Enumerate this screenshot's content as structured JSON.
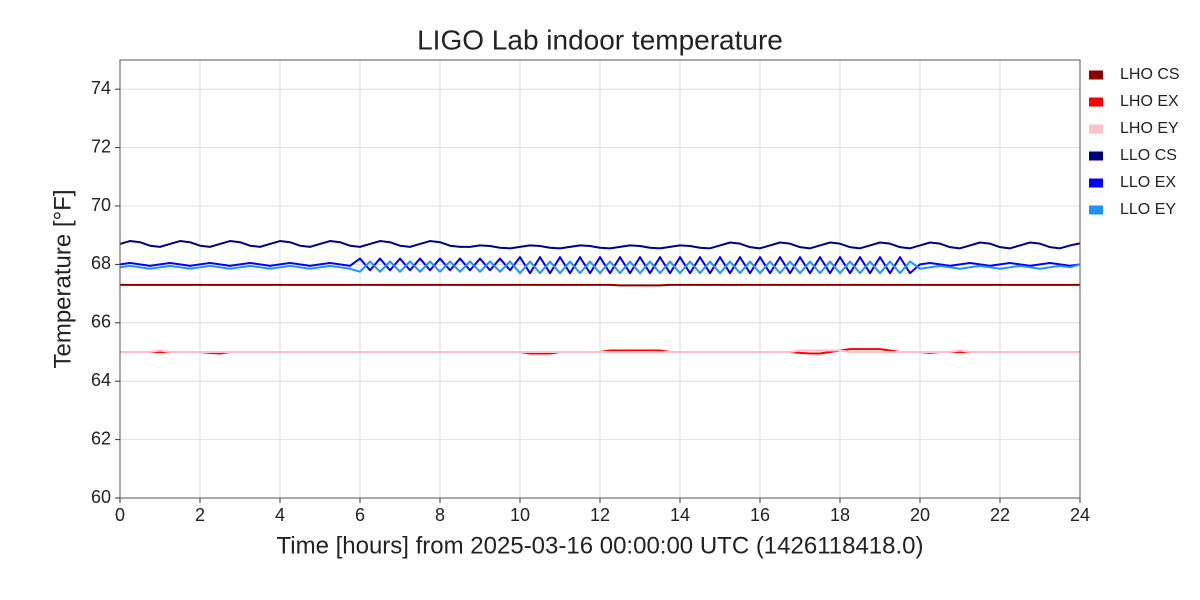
{
  "chart_data": {
    "type": "line",
    "title": "LIGO Lab indoor temperature",
    "xlabel": "Time [hours] from 2025-03-16 00:00:00 UTC (1426118418.0)",
    "ylabel": "Temperature [°F]",
    "xlim": [
      0,
      24
    ],
    "xticks": [
      0,
      2,
      4,
      6,
      8,
      10,
      12,
      14,
      16,
      18,
      20,
      22,
      24
    ],
    "ylim": [
      60,
      75
    ],
    "yticks": [
      60,
      62,
      64,
      66,
      68,
      70,
      72,
      74
    ],
    "grid": true,
    "legend": "outside right",
    "x": [
      0,
      0.25,
      0.5,
      0.75,
      1,
      1.25,
      1.5,
      1.75,
      2,
      2.25,
      2.5,
      2.75,
      3,
      3.25,
      3.5,
      3.75,
      4,
      4.25,
      4.5,
      4.75,
      5,
      5.25,
      5.5,
      5.75,
      6,
      6.25,
      6.5,
      6.75,
      7,
      7.25,
      7.5,
      7.75,
      8,
      8.25,
      8.5,
      8.75,
      9,
      9.25,
      9.5,
      9.75,
      10,
      10.25,
      10.5,
      10.75,
      11,
      11.25,
      11.5,
      11.75,
      12,
      12.25,
      12.5,
      12.75,
      13,
      13.25,
      13.5,
      13.75,
      14,
      14.25,
      14.5,
      14.75,
      15,
      15.25,
      15.5,
      15.75,
      16,
      16.25,
      16.5,
      16.75,
      17,
      17.25,
      17.5,
      17.75,
      18,
      18.25,
      18.5,
      18.75,
      19,
      19.25,
      19.5,
      19.75,
      20,
      20.25,
      20.5,
      20.75,
      21,
      21.25,
      21.5,
      21.75,
      22,
      22.25,
      22.5,
      22.75,
      23,
      23.25,
      23.5,
      23.75,
      24
    ],
    "series": [
      {
        "name": "LHO CS",
        "color": "#8b0000",
        "values": [
          67.3,
          67.3,
          67.3,
          67.3,
          67.3,
          67.3,
          67.3,
          67.3,
          67.3,
          67.3,
          67.3,
          67.3,
          67.3,
          67.3,
          67.3,
          67.3,
          67.3,
          67.3,
          67.3,
          67.3,
          67.3,
          67.3,
          67.3,
          67.3,
          67.3,
          67.3,
          67.3,
          67.3,
          67.3,
          67.3,
          67.3,
          67.3,
          67.3,
          67.3,
          67.3,
          67.3,
          67.3,
          67.3,
          67.3,
          67.3,
          67.3,
          67.3,
          67.3,
          67.3,
          67.3,
          67.3,
          67.3,
          67.3,
          67.3,
          67.3,
          67.28,
          67.28,
          67.28,
          67.28,
          67.28,
          67.3,
          67.3,
          67.3,
          67.3,
          67.3,
          67.3,
          67.3,
          67.3,
          67.3,
          67.3,
          67.3,
          67.3,
          67.3,
          67.3,
          67.3,
          67.3,
          67.3,
          67.3,
          67.3,
          67.3,
          67.3,
          67.3,
          67.3,
          67.3,
          67.3,
          67.3,
          67.3,
          67.3,
          67.3,
          67.3,
          67.3,
          67.3,
          67.3,
          67.3,
          67.3,
          67.3,
          67.3,
          67.3,
          67.3,
          67.3,
          67.3,
          67.3
        ]
      },
      {
        "name": "LHO EX",
        "color": "#ff0000",
        "values": [
          65.0,
          65.0,
          65.0,
          65.0,
          65.0,
          65.0,
          65.0,
          65.0,
          65.0,
          64.97,
          64.95,
          65.0,
          65.0,
          65.0,
          65.0,
          65.0,
          65.0,
          65.0,
          65.0,
          65.0,
          65.0,
          65.0,
          65.0,
          65.0,
          65.0,
          65.0,
          65.0,
          65.0,
          65.0,
          65.0,
          65.0,
          65.0,
          65.0,
          65.0,
          65.0,
          65.0,
          65.0,
          65.0,
          65.0,
          65.0,
          65.0,
          64.95,
          64.95,
          64.95,
          65.0,
          65.0,
          65.0,
          65.0,
          65.0,
          65.05,
          65.05,
          65.05,
          65.05,
          65.05,
          65.05,
          65.0,
          65.0,
          65.0,
          65.0,
          65.0,
          65.0,
          65.0,
          65.0,
          65.0,
          65.0,
          65.0,
          65.0,
          65.0,
          64.97,
          64.95,
          64.95,
          65.0,
          65.05,
          65.1,
          65.1,
          65.1,
          65.1,
          65.05,
          65.0,
          65.0,
          65.0,
          64.97,
          65.0,
          65.0,
          65.0,
          65.0,
          65.0,
          65.0,
          65.0,
          65.0,
          65.0,
          65.0,
          65.0,
          65.0,
          65.0,
          65.0,
          65.0
        ]
      },
      {
        "name": "LHO EY",
        "color": "#ffc0cb",
        "values": [
          65.0,
          65.0,
          65.0,
          65.0,
          65.05,
          65.0,
          65.0,
          65.0,
          65.0,
          65.0,
          65.0,
          65.0,
          65.0,
          65.0,
          65.0,
          65.0,
          65.0,
          65.0,
          65.0,
          65.0,
          65.0,
          65.0,
          65.0,
          65.0,
          65.0,
          65.0,
          65.0,
          65.0,
          65.0,
          65.0,
          65.0,
          65.0,
          65.0,
          65.0,
          65.0,
          65.0,
          65.0,
          65.0,
          65.0,
          65.0,
          65.0,
          65.0,
          65.0,
          65.0,
          65.0,
          65.0,
          65.0,
          65.0,
          65.0,
          65.0,
          65.0,
          65.0,
          65.0,
          65.0,
          65.0,
          65.0,
          65.0,
          65.0,
          65.0,
          65.0,
          65.0,
          65.0,
          65.0,
          65.0,
          65.0,
          65.0,
          65.0,
          65.0,
          65.05,
          65.05,
          65.05,
          65.05,
          65.05,
          65.0,
          65.0,
          65.0,
          65.0,
          65.0,
          65.0,
          65.0,
          65.0,
          65.0,
          65.0,
          65.0,
          65.05,
          65.0,
          65.0,
          65.0,
          65.0,
          65.0,
          65.0,
          65.0,
          65.0,
          65.0,
          65.0,
          65.0,
          65.0
        ]
      },
      {
        "name": "LLO CS",
        "color": "#000080",
        "values": [
          68.7,
          68.8,
          68.76,
          68.64,
          68.6,
          68.7,
          68.8,
          68.76,
          68.64,
          68.6,
          68.7,
          68.8,
          68.76,
          68.64,
          68.6,
          68.7,
          68.8,
          68.76,
          68.64,
          68.6,
          68.7,
          68.8,
          68.76,
          68.64,
          68.6,
          68.7,
          68.8,
          68.76,
          68.64,
          68.6,
          68.7,
          68.8,
          68.76,
          68.64,
          68.6,
          68.6,
          68.65,
          68.63,
          68.57,
          68.55,
          68.6,
          68.65,
          68.63,
          68.57,
          68.55,
          68.6,
          68.65,
          68.63,
          68.57,
          68.55,
          68.6,
          68.65,
          68.63,
          68.57,
          68.55,
          68.6,
          68.65,
          68.63,
          68.57,
          68.55,
          68.65,
          68.75,
          68.71,
          68.59,
          68.55,
          68.65,
          68.75,
          68.71,
          68.59,
          68.55,
          68.65,
          68.75,
          68.71,
          68.59,
          68.55,
          68.65,
          68.75,
          68.71,
          68.59,
          68.55,
          68.65,
          68.75,
          68.71,
          68.59,
          68.55,
          68.65,
          68.75,
          68.71,
          68.59,
          68.55,
          68.65,
          68.75,
          68.71,
          68.59,
          68.55,
          68.65,
          68.72
        ]
      },
      {
        "name": "LLO EX",
        "color": "#0000ff",
        "values": [
          68.0,
          68.05,
          68.0,
          67.95,
          68.0,
          68.05,
          68.0,
          67.95,
          68.0,
          68.05,
          68.0,
          67.95,
          68.0,
          68.05,
          68.0,
          67.95,
          68.0,
          68.05,
          68.0,
          67.95,
          68.0,
          68.05,
          68.0,
          67.95,
          68.2,
          67.8,
          68.2,
          67.8,
          68.2,
          67.8,
          68.2,
          67.8,
          68.2,
          67.8,
          68.2,
          67.8,
          68.2,
          67.8,
          68.2,
          67.8,
          68.25,
          67.7,
          68.25,
          67.7,
          68.25,
          67.7,
          68.25,
          67.7,
          68.25,
          67.7,
          68.25,
          67.7,
          68.25,
          67.7,
          68.25,
          67.7,
          68.25,
          67.7,
          68.25,
          67.7,
          68.25,
          67.7,
          68.25,
          67.7,
          68.25,
          67.7,
          68.25,
          67.7,
          68.25,
          67.7,
          68.25,
          67.7,
          68.25,
          67.7,
          68.25,
          67.7,
          68.25,
          67.7,
          68.25,
          67.7,
          68.0,
          68.05,
          68.0,
          67.95,
          68.0,
          68.05,
          68.0,
          67.95,
          68.0,
          68.05,
          68.0,
          67.95,
          68.0,
          68.05,
          68.0,
          67.95,
          68.0
        ]
      },
      {
        "name": "LLO EY",
        "color": "#1e90ff",
        "values": [
          67.9,
          67.95,
          67.9,
          67.85,
          67.9,
          67.95,
          67.9,
          67.85,
          67.9,
          67.95,
          67.9,
          67.85,
          67.9,
          67.95,
          67.9,
          67.85,
          67.9,
          67.95,
          67.9,
          67.85,
          67.9,
          67.95,
          67.9,
          67.85,
          67.75,
          68.1,
          67.75,
          68.1,
          67.75,
          68.1,
          67.75,
          68.1,
          67.75,
          68.1,
          67.75,
          68.1,
          67.75,
          68.1,
          67.75,
          68.1,
          67.7,
          68.1,
          67.7,
          68.1,
          67.7,
          68.1,
          67.7,
          68.1,
          67.7,
          68.1,
          67.7,
          68.1,
          67.7,
          68.1,
          67.7,
          68.1,
          67.7,
          68.1,
          67.7,
          68.1,
          67.7,
          68.1,
          67.7,
          68.1,
          67.7,
          68.1,
          67.7,
          68.1,
          67.7,
          68.1,
          67.7,
          68.1,
          67.7,
          68.1,
          67.7,
          68.1,
          67.7,
          68.1,
          67.7,
          68.1,
          67.85,
          67.9,
          67.95,
          67.9,
          67.85,
          67.9,
          67.95,
          67.9,
          67.85,
          67.9,
          67.95,
          67.9,
          67.85,
          67.9,
          67.95,
          67.9,
          68.0
        ]
      }
    ]
  }
}
